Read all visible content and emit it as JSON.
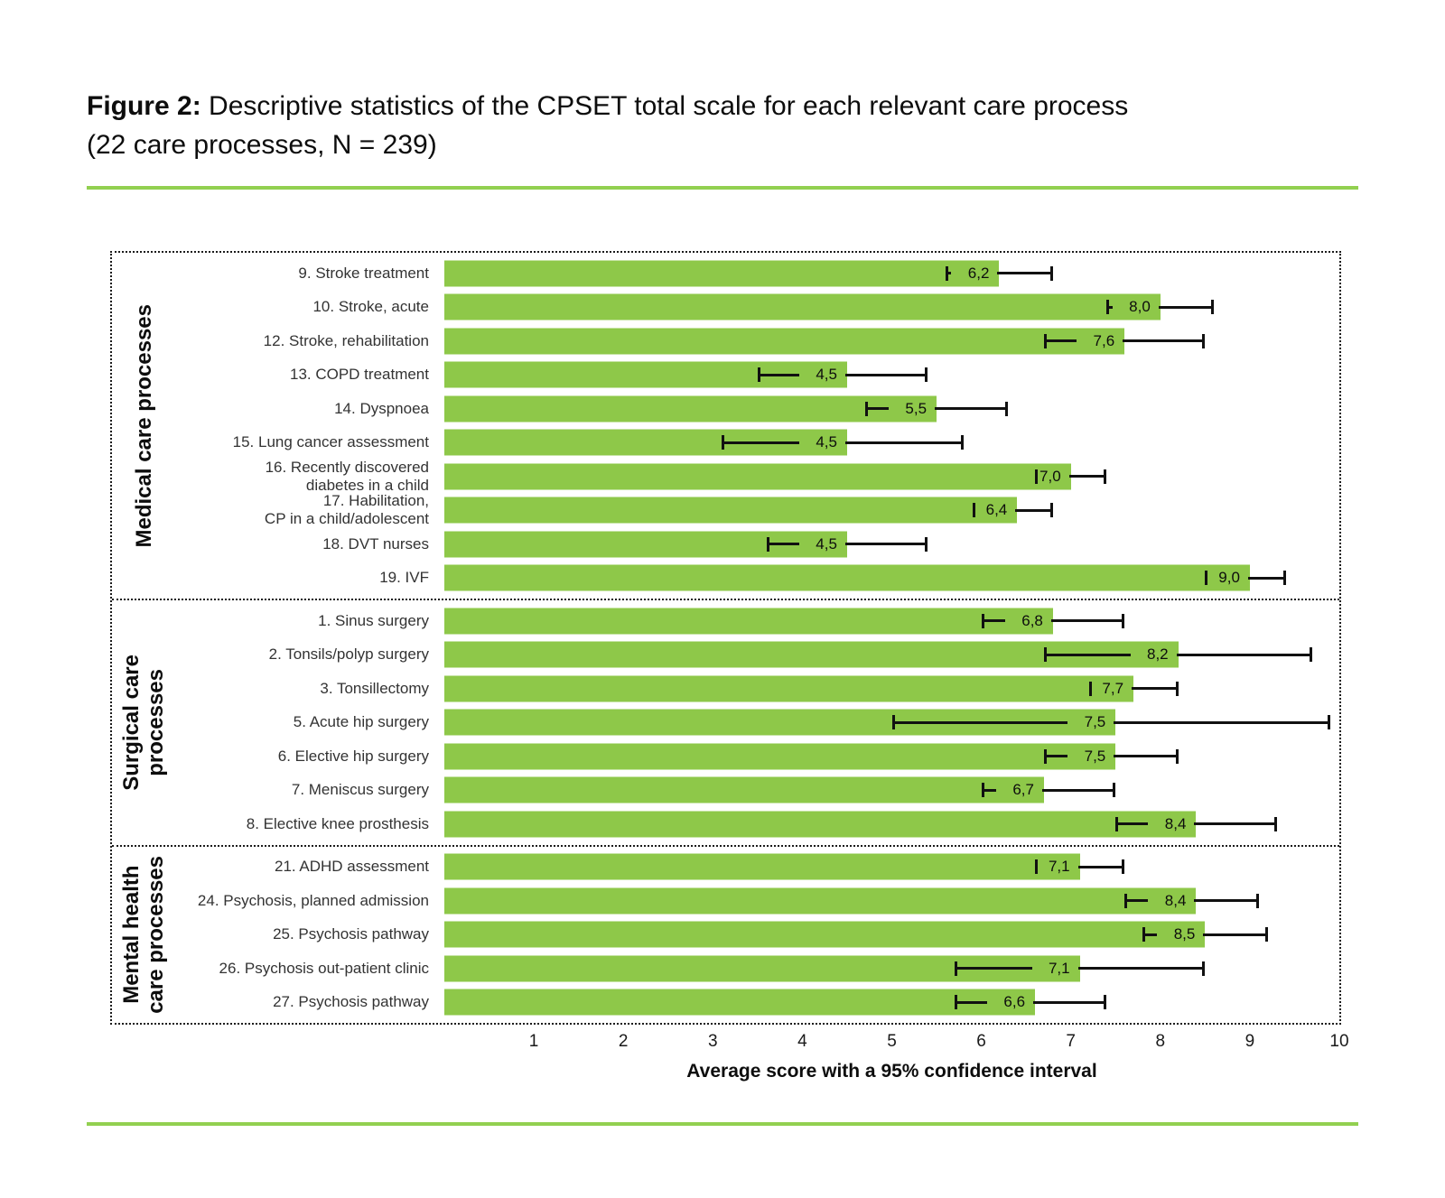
{
  "figure": {
    "title_prefix": "Figure 2:",
    "title_line1": " Descriptive statistics of the CPSET total scale for each relevant care process",
    "title_line2": "(22 care processes, N = 239)"
  },
  "chart_data": {
    "type": "bar",
    "orientation": "horizontal",
    "title": "Descriptive statistics of the CPSET total scale for each relevant care process (22 care processes, N = 239)",
    "xlabel": "Average score with a 95% confidence interval",
    "ylabel": "",
    "xlim": [
      0,
      10
    ],
    "xticks": [
      "1",
      "2",
      "3",
      "4",
      "5",
      "6",
      "7",
      "8",
      "9",
      "10"
    ],
    "grid": false,
    "legend": false,
    "decimal_separator": ",",
    "bar_color": "#8ec849",
    "error_bar_color": "#111111",
    "groups": [
      {
        "label": "Medical care processes",
        "rows": [
          {
            "label": "9. Stroke treatment",
            "value": 6.2,
            "value_display": "6,2",
            "ci_low": 5.6,
            "ci_high": 6.8
          },
          {
            "label": "10. Stroke, acute",
            "value": 8.0,
            "value_display": "8,0",
            "ci_low": 7.4,
            "ci_high": 8.6
          },
          {
            "label": "12. Stroke, rehabilitation",
            "value": 7.6,
            "value_display": "7,6",
            "ci_low": 6.7,
            "ci_high": 8.5
          },
          {
            "label": "13. COPD treatment",
            "value": 4.5,
            "value_display": "4,5",
            "ci_low": 3.5,
            "ci_high": 5.4
          },
          {
            "label": "14. Dyspnoea",
            "value": 5.5,
            "value_display": "5,5",
            "ci_low": 4.7,
            "ci_high": 6.3
          },
          {
            "label": "15. Lung cancer assessment",
            "value": 4.5,
            "value_display": "4,5",
            "ci_low": 3.1,
            "ci_high": 5.8
          },
          {
            "label": "16. Recently discovered\ndiabetes in a child",
            "value": 7.0,
            "value_display": "7,0",
            "ci_low": 6.6,
            "ci_high": 7.4
          },
          {
            "label": "17. Habilitation,\nCP in a child/adolescent",
            "value": 6.4,
            "value_display": "6,4",
            "ci_low": 5.9,
            "ci_high": 6.8
          },
          {
            "label": "18. DVT nurses",
            "value": 4.5,
            "value_display": "4,5",
            "ci_low": 3.6,
            "ci_high": 5.4
          },
          {
            "label": "19. IVF",
            "value": 9.0,
            "value_display": "9,0",
            "ci_low": 8.5,
            "ci_high": 9.4
          }
        ]
      },
      {
        "label": "Surgical care\nprocesses",
        "rows": [
          {
            "label": "1. Sinus surgery",
            "value": 6.8,
            "value_display": "6,8",
            "ci_low": 6.0,
            "ci_high": 7.6
          },
          {
            "label": "2. Tonsils/polyp surgery",
            "value": 8.2,
            "value_display": "8,2",
            "ci_low": 6.7,
            "ci_high": 9.7
          },
          {
            "label": "3. Tonsillectomy",
            "value": 7.7,
            "value_display": "7,7",
            "ci_low": 7.2,
            "ci_high": 8.2
          },
          {
            "label": "5. Acute hip surgery",
            "value": 7.5,
            "value_display": "7,5",
            "ci_low": 5.0,
            "ci_high": 9.9
          },
          {
            "label": "6. Elective hip surgery",
            "value": 7.5,
            "value_display": "7,5",
            "ci_low": 6.7,
            "ci_high": 8.2
          },
          {
            "label": "7. Meniscus surgery",
            "value": 6.7,
            "value_display": "6,7",
            "ci_low": 6.0,
            "ci_high": 7.5
          },
          {
            "label": "8. Elective knee prosthesis",
            "value": 8.4,
            "value_display": "8,4",
            "ci_low": 7.5,
            "ci_high": 9.3
          }
        ]
      },
      {
        "label": "Mental health\ncare processes",
        "rows": [
          {
            "label": "21. ADHD assessment",
            "value": 7.1,
            "value_display": "7,1",
            "ci_low": 6.6,
            "ci_high": 7.6
          },
          {
            "label": "24. Psychosis, planned admission",
            "value": 8.4,
            "value_display": "8,4",
            "ci_low": 7.6,
            "ci_high": 9.1
          },
          {
            "label": "25. Psychosis pathway",
            "value": 8.5,
            "value_display": "8,5",
            "ci_low": 7.8,
            "ci_high": 9.2
          },
          {
            "label": "26. Psychosis out-patient clinic",
            "value": 7.1,
            "value_display": "7,1",
            "ci_low": 5.7,
            "ci_high": 8.5
          },
          {
            "label": "27. Psychosis pathway",
            "value": 6.6,
            "value_display": "6,6",
            "ci_low": 5.7,
            "ci_high": 7.4
          }
        ]
      }
    ]
  },
  "colors": {
    "bar_green": "#8ec849",
    "rule_green": "#92d050",
    "error_black": "#111111",
    "text_dark": "#0d0d0d"
  }
}
